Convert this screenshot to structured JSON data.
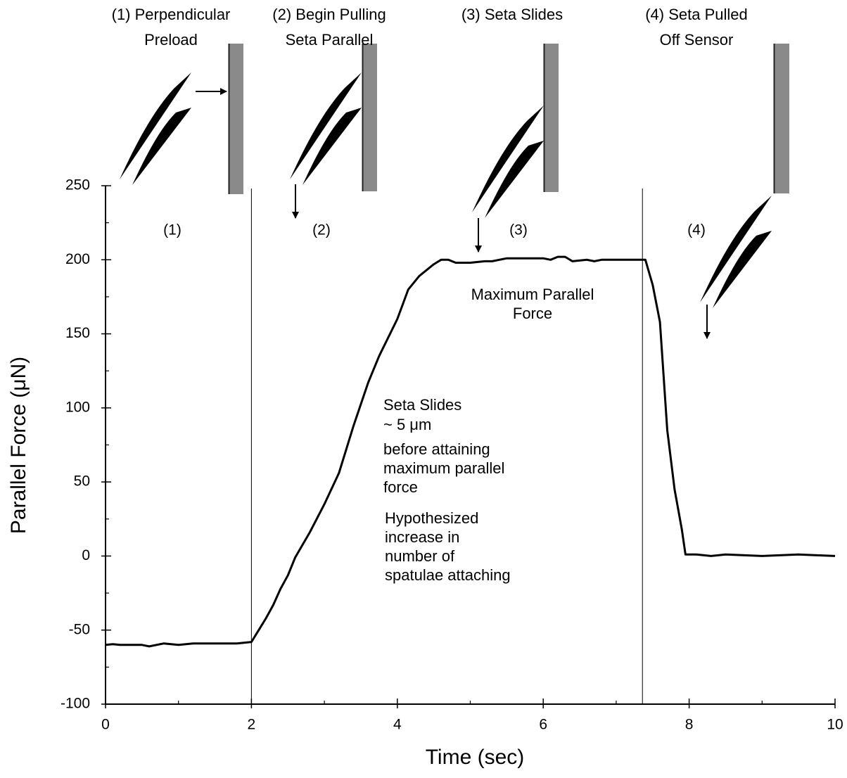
{
  "chart_data": {
    "type": "line",
    "xlabel": "Time (sec)",
    "ylabel": "Parallel Force (μN)",
    "x": [
      0,
      0.1,
      0.2,
      0.5,
      0.6,
      0.8,
      1.0,
      1.2,
      1.8,
      2.0,
      2.1,
      2.2,
      2.3,
      2.4,
      2.5,
      2.6,
      2.8,
      3.0,
      3.2,
      3.4,
      3.6,
      3.75,
      4.0,
      4.15,
      4.3,
      4.5,
      4.6,
      4.7,
      4.8,
      5.0,
      5.2,
      5.3,
      5.5,
      6.0,
      6.1,
      6.2,
      6.3,
      6.4,
      6.6,
      6.7,
      6.8,
      7.4,
      7.5,
      7.6,
      7.7,
      7.8,
      7.9,
      7.95,
      8.1,
      8.3,
      8.5,
      9.0,
      9.5,
      10
    ],
    "values": [
      -60,
      -59.5,
      -60,
      -60,
      -61,
      -59,
      -60,
      -59,
      -59,
      -58,
      -50,
      -42,
      -33,
      -22,
      -13,
      -1,
      16,
      35,
      56,
      88,
      117,
      135,
      160,
      180,
      189,
      197,
      200,
      200,
      198,
      198,
      199,
      199,
      201,
      201,
      200,
      202,
      202,
      199,
      200,
      199,
      200,
      200,
      183,
      158,
      85,
      45,
      18,
      1,
      1,
      0,
      1,
      0,
      1,
      0
    ],
    "color": "#000000",
    "xlim": [
      0,
      10
    ],
    "xticks": [
      0,
      2,
      4,
      6,
      8,
      10
    ],
    "xminorticks": [
      1,
      3,
      5,
      7,
      9
    ],
    "ylim": [
      -100,
      250
    ],
    "yticks": [
      -100,
      -50,
      0,
      50,
      100,
      150,
      200,
      250
    ],
    "yminorticks": [
      -75,
      -25,
      25,
      75,
      125,
      175,
      225
    ],
    "phase_boundaries": [
      2,
      7.36
    ],
    "phases": [
      {
        "caption": [
          "(1) Perpendicular",
          "Preload"
        ],
        "label": "(1)"
      },
      {
        "caption": [
          "(2) Begin Pulling",
          "Seta Parallel"
        ],
        "label": "(2)"
      },
      {
        "caption": [
          "(3) Seta Slides"
        ],
        "label": "(3)"
      },
      {
        "caption": [
          "(4) Seta Pulled",
          "Off Sensor"
        ],
        "label": "(4)"
      }
    ],
    "annotations": [
      [
        "Maximum Parallel",
        "Force"
      ],
      [
        "Seta Slides",
        "~ 5 μm"
      ],
      [
        "before attaining",
        "maximum parallel",
        "force"
      ],
      [
        "Hypothesized",
        "increase in",
        "number of",
        "spatulae attaching"
      ]
    ]
  }
}
